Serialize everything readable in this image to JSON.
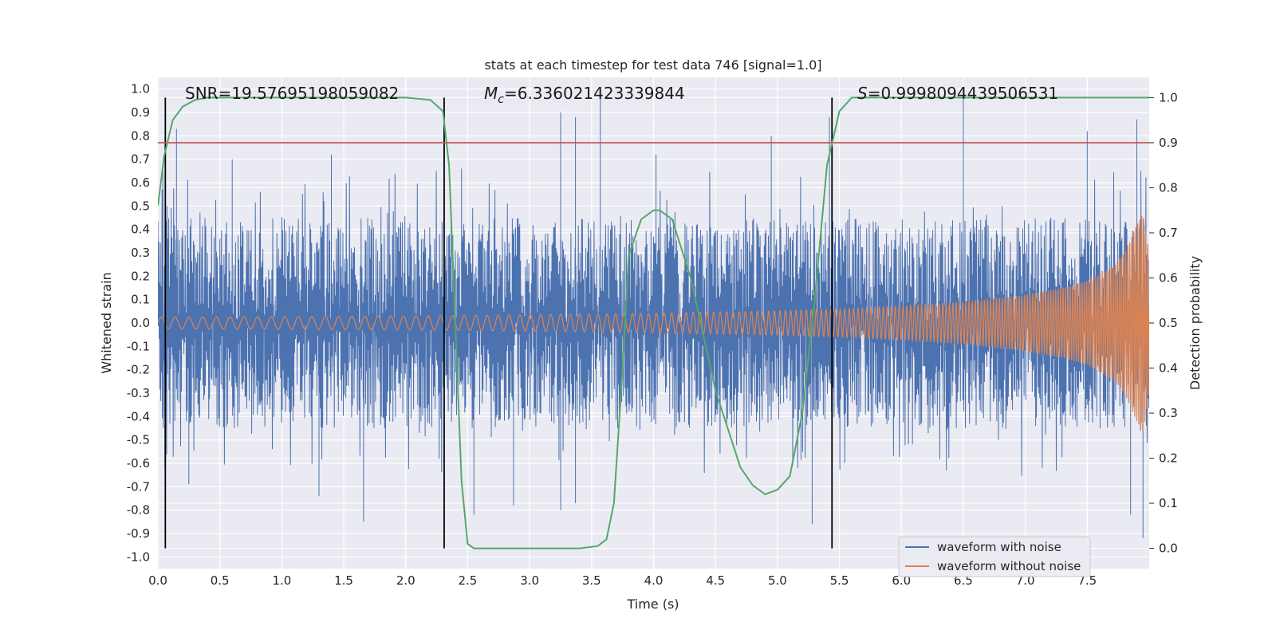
{
  "chart_data": {
    "type": "line",
    "title": "stats at each timestep for test data 746 [signal=1.0]",
    "xlabel": "Time (s)",
    "ylabel": "Whitened strain",
    "ylabel_right": "Detection probability",
    "xlim": [
      0.0,
      8.0
    ],
    "ylim": [
      -1.05,
      1.05
    ],
    "ylim_right": [
      -0.045,
      1.045
    ],
    "xticks": [
      "0.0",
      "0.5",
      "1.0",
      "1.5",
      "2.0",
      "2.5",
      "3.0",
      "3.5",
      "4.0",
      "4.5",
      "5.0",
      "5.5",
      "6.0",
      "6.5",
      "7.0",
      "7.5"
    ],
    "yticks": [
      "-1.0",
      "-0.9",
      "-0.8",
      "-0.7",
      "-0.6",
      "-0.5",
      "-0.4",
      "-0.3",
      "-0.2",
      "-0.1",
      "0.0",
      "0.1",
      "0.2",
      "0.3",
      "0.4",
      "0.5",
      "0.6",
      "0.7",
      "0.8",
      "0.9",
      "1.0"
    ],
    "yticks_right": [
      "0.0",
      "0.1",
      "0.2",
      "0.3",
      "0.4",
      "0.5",
      "0.6",
      "0.7",
      "0.8",
      "0.9",
      "1.0"
    ],
    "grid": true,
    "legend_position": "bottom-right",
    "annotations": {
      "snr": "SNR=19.57695198059082",
      "mc_symbol": "M",
      "mc_sub": "c",
      "mc_value": "=6.336021423339844",
      "s_symbol": "S",
      "s_value": "=0.9998094439506531"
    },
    "threshold_right": 0.9,
    "vertical_markers": [
      0.06,
      2.31,
      5.44
    ],
    "series": [
      {
        "name": "waveform with noise",
        "color": "#4c72b0",
        "kind": "noise",
        "typical_band": [
          -0.45,
          0.45
        ],
        "peaks_x": [
          0.15,
          0.6,
          1.4,
          2.45,
          3.25,
          3.37,
          3.57,
          4.02,
          4.95,
          5.42,
          6.5,
          7.5,
          7.9
        ],
        "peaks_y": [
          0.83,
          0.7,
          0.72,
          0.66,
          0.9,
          0.88,
          0.97,
          0.72,
          0.8,
          0.88,
          1.0,
          0.82,
          0.87
        ],
        "troughs_x": [
          0.25,
          1.3,
          1.66,
          2.55,
          2.87,
          3.25,
          3.37,
          5.28,
          7.85,
          7.95
        ],
        "troughs_y": [
          -0.69,
          -0.74,
          -0.85,
          -0.82,
          -0.78,
          -0.8,
          -0.77,
          -0.86,
          -0.82,
          -0.92
        ]
      },
      {
        "name": "waveform without noise",
        "color": "#dd8452",
        "kind": "chirp",
        "envelope_x": [
          0.0,
          1.0,
          2.0,
          3.0,
          4.0,
          5.0,
          5.5,
          6.0,
          6.5,
          7.0,
          7.3,
          7.5,
          7.7,
          7.8,
          7.9,
          7.95,
          8.0
        ],
        "envelope_y": [
          0.025,
          0.027,
          0.03,
          0.035,
          0.042,
          0.052,
          0.06,
          0.072,
          0.09,
          0.12,
          0.15,
          0.18,
          0.24,
          0.3,
          0.42,
          0.47,
          0.3
        ]
      },
      {
        "name": "detection probability",
        "color": "#55a868",
        "axis": "right",
        "x": [
          0.0,
          0.05,
          0.12,
          0.2,
          0.3,
          0.4,
          0.6,
          1.0,
          2.0,
          2.2,
          2.3,
          2.35,
          2.4,
          2.45,
          2.5,
          2.55,
          2.6,
          3.0,
          3.4,
          3.55,
          3.62,
          3.68,
          3.75,
          3.8,
          3.9,
          4.0,
          4.05,
          4.15,
          4.3,
          4.5,
          4.7,
          4.8,
          4.9,
          5.0,
          5.1,
          5.2,
          5.3,
          5.4,
          5.5,
          5.6,
          5.7,
          6.0,
          8.0
        ],
        "y": [
          0.76,
          0.87,
          0.95,
          0.98,
          0.995,
          1.0,
          1.0,
          1.0,
          1.0,
          0.995,
          0.97,
          0.85,
          0.5,
          0.15,
          0.01,
          0.0,
          0.0,
          0.0,
          0.0,
          0.005,
          0.02,
          0.1,
          0.4,
          0.65,
          0.73,
          0.75,
          0.75,
          0.73,
          0.6,
          0.35,
          0.18,
          0.14,
          0.12,
          0.13,
          0.16,
          0.3,
          0.55,
          0.85,
          0.97,
          1.0,
          1.0,
          1.0,
          1.0
        ]
      },
      {
        "name": "threshold",
        "color": "#c44e52",
        "axis": "right"
      }
    ]
  }
}
